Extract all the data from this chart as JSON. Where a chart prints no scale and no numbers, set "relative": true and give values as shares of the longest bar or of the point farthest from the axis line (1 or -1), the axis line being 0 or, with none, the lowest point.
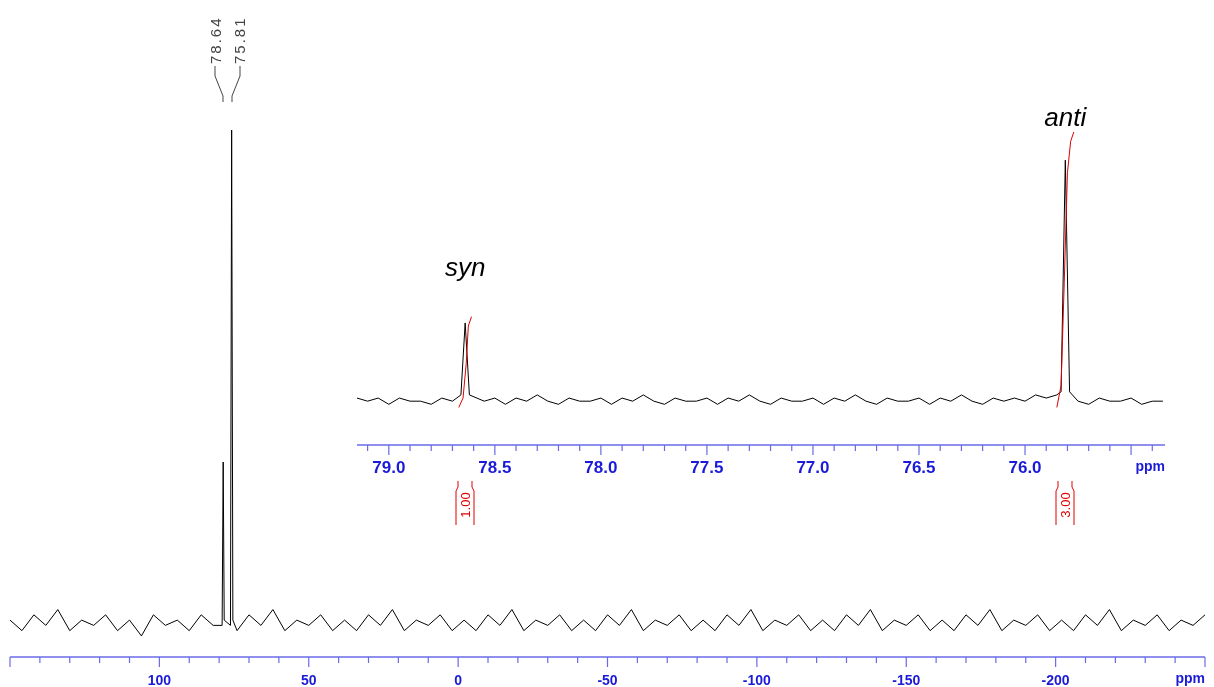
{
  "chart_data": [
    {
      "type": "line",
      "relative": true,
      "xlabel": "ppm",
      "xlim": [
        150,
        -250
      ],
      "xticks": [
        {
          "value": 150,
          "label": null
        },
        {
          "value": 140,
          "label": null
        },
        {
          "value": 130,
          "label": null
        },
        {
          "value": 120,
          "label": null
        },
        {
          "value": 110,
          "label": null
        },
        100,
        {
          "value": 90,
          "label": null
        },
        {
          "value": 80,
          "label": null
        },
        {
          "value": 70,
          "label": null
        },
        {
          "value": 60,
          "label": null
        },
        50,
        {
          "value": 40,
          "label": null
        },
        {
          "value": 30,
          "label": null
        },
        {
          "value": 20,
          "label": null
        },
        {
          "value": 10,
          "label": null
        },
        0,
        {
          "value": -10,
          "label": null
        },
        {
          "value": -20,
          "label": null
        },
        {
          "value": -30,
          "label": null
        },
        {
          "value": -40,
          "label": null
        },
        -50,
        {
          "value": -60,
          "label": null
        },
        {
          "value": -70,
          "label": null
        },
        {
          "value": -80,
          "label": null
        },
        {
          "value": -90,
          "label": null
        },
        -100,
        {
          "value": -110,
          "label": null
        },
        {
          "value": -120,
          "label": null
        },
        {
          "value": -130,
          "label": null
        },
        {
          "value": -140,
          "label": null
        },
        -150,
        {
          "value": -160,
          "label": null
        },
        {
          "value": -170,
          "label": null
        },
        {
          "value": -180,
          "label": null
        },
        {
          "value": -190,
          "label": null
        },
        -200,
        {
          "value": -210,
          "label": null
        },
        {
          "value": -220,
          "label": null
        },
        {
          "value": -230,
          "label": null
        },
        {
          "value": -240,
          "label": null
        },
        {
          "value": -250,
          "label": null
        }
      ],
      "annotations": [
        "78.64",
        "75.81"
      ],
      "series": [
        {
          "color": "#000000",
          "x": [
            150,
            146,
            142,
            138,
            134,
            130,
            126,
            122,
            118,
            114,
            110,
            106,
            102,
            98,
            94,
            90,
            86,
            82,
            79,
            78.64,
            78.3,
            76.2,
            75.81,
            75.4,
            74,
            70,
            66,
            62,
            58,
            54,
            50,
            46,
            42,
            38,
            34,
            30,
            26,
            22,
            18,
            14,
            10,
            6,
            2,
            -2,
            -6,
            -10,
            -14,
            -18,
            -22,
            -26,
            -30,
            -34,
            -38,
            -42,
            -46,
            -50,
            -54,
            -58,
            -62,
            -66,
            -70,
            -74,
            -78,
            -82,
            -86,
            -90,
            -94,
            -98,
            -102,
            -106,
            -110,
            -114,
            -118,
            -122,
            -126,
            -130,
            -134,
            -138,
            -142,
            -146,
            -150,
            -154,
            -158,
            -162,
            -166,
            -170,
            -174,
            -178,
            -182,
            -186,
            -190,
            -194,
            -198,
            -202,
            -206,
            -210,
            -214,
            -218,
            -222,
            -226,
            -230,
            -234,
            -238,
            -242,
            -246,
            -250
          ],
          "values": [
            0.07,
            0.05,
            0.08,
            0.06,
            0.09,
            0.05,
            0.07,
            0.06,
            0.08,
            0.05,
            0.07,
            0.04,
            0.08,
            0.06,
            0.07,
            0.05,
            0.08,
            0.06,
            0.06,
            0.37,
            0.07,
            0.06,
            1,
            0.07,
            0.05,
            0.08,
            0.06,
            0.09,
            0.05,
            0.07,
            0.06,
            0.08,
            0.05,
            0.07,
            0.05,
            0.08,
            0.06,
            0.09,
            0.05,
            0.07,
            0.06,
            0.08,
            0.05,
            0.07,
            0.05,
            0.08,
            0.06,
            0.09,
            0.05,
            0.07,
            0.06,
            0.08,
            0.05,
            0.07,
            0.05,
            0.08,
            0.06,
            0.09,
            0.05,
            0.07,
            0.06,
            0.08,
            0.05,
            0.07,
            0.05,
            0.08,
            0.06,
            0.09,
            0.05,
            0.07,
            0.06,
            0.08,
            0.05,
            0.07,
            0.05,
            0.08,
            0.06,
            0.09,
            0.05,
            0.07,
            0.06,
            0.08,
            0.05,
            0.07,
            0.05,
            0.08,
            0.06,
            0.09,
            0.05,
            0.07,
            0.06,
            0.08,
            0.05,
            0.07,
            0.05,
            0.08,
            0.06,
            0.09,
            0.05,
            0.07,
            0.06,
            0.08,
            0.05,
            0.07,
            0.06,
            0.08
          ]
        }
      ]
    },
    {
      "type": "line",
      "relative": true,
      "xlabel": "ppm",
      "xlim": [
        79.15,
        75.34
      ],
      "xticks": [
        {
          "value": 79.1,
          "label": null
        },
        {
          "value": 79,
          "label": "79.0"
        },
        {
          "value": 78.9,
          "label": null
        },
        {
          "value": 78.8,
          "label": null
        },
        {
          "value": 78.7,
          "label": null
        },
        {
          "value": 78.6,
          "label": null
        },
        78.5,
        {
          "value": 78.4,
          "label": null
        },
        {
          "value": 78.3,
          "label": null
        },
        {
          "value": 78.2,
          "label": null
        },
        {
          "value": 78.1,
          "label": null
        },
        {
          "value": 78,
          "label": "78.0"
        },
        {
          "value": 77.9,
          "label": null
        },
        {
          "value": 77.8,
          "label": null
        },
        {
          "value": 77.7,
          "label": null
        },
        {
          "value": 77.6,
          "label": null
        },
        77.5,
        {
          "value": 77.4,
          "label": null
        },
        {
          "value": 77.3,
          "label": null
        },
        {
          "value": 77.2,
          "label": null
        },
        {
          "value": 77.1,
          "label": null
        },
        {
          "value": 77,
          "label": "77.0"
        },
        {
          "value": 76.9,
          "label": null
        },
        {
          "value": 76.8,
          "label": null
        },
        {
          "value": 76.7,
          "label": null
        },
        {
          "value": 76.6,
          "label": null
        },
        76.5,
        {
          "value": 76.4,
          "label": null
        },
        {
          "value": 76.3,
          "label": null
        },
        {
          "value": 76.2,
          "label": null
        },
        {
          "value": 76.1,
          "label": null
        },
        {
          "value": 76,
          "label": "76.0"
        },
        {
          "value": 75.9,
          "label": null
        },
        {
          "value": 75.8,
          "label": null
        },
        {
          "value": 75.7,
          "label": null
        },
        {
          "value": 75.6,
          "label": null
        },
        {
          "value": 75.5,
          "label": null
        },
        {
          "value": 75.4,
          "label": null
        }
      ],
      "annotations": [
        "syn",
        "anti",
        "1.00",
        "3.00"
      ],
      "series": [
        {
          "color": "#000000",
          "x": [
            79.15,
            79.1,
            79.05,
            79,
            78.95,
            78.9,
            78.85,
            78.8,
            78.75,
            78.7,
            78.66,
            78.64,
            78.62,
            78.55,
            78.5,
            78.45,
            78.4,
            78.35,
            78.3,
            78.25,
            78.2,
            78.15,
            78.1,
            78.05,
            78,
            77.95,
            77.9,
            77.85,
            77.8,
            77.75,
            77.7,
            77.65,
            77.6,
            77.55,
            77.5,
            77.45,
            77.4,
            77.35,
            77.3,
            77.25,
            77.2,
            77.15,
            77.1,
            77.05,
            77,
            76.95,
            76.9,
            76.85,
            76.8,
            76.75,
            76.7,
            76.65,
            76.6,
            76.55,
            76.5,
            76.45,
            76.4,
            76.35,
            76.3,
            76.25,
            76.2,
            76.15,
            76.1,
            76.05,
            76,
            75.95,
            75.9,
            75.85,
            75.83,
            75.81,
            75.79,
            75.75,
            75.7,
            75.65,
            75.6,
            75.55,
            75.5,
            75.45,
            75.4,
            75.35
          ],
          "values": [
            0.15,
            0.14,
            0.15,
            0.13,
            0.15,
            0.14,
            0.14,
            0.13,
            0.15,
            0.14,
            0.16,
            0.39,
            0.16,
            0.14,
            0.15,
            0.13,
            0.15,
            0.14,
            0.16,
            0.14,
            0.13,
            0.15,
            0.14,
            0.14,
            0.15,
            0.13,
            0.15,
            0.14,
            0.16,
            0.14,
            0.13,
            0.15,
            0.14,
            0.14,
            0.15,
            0.13,
            0.15,
            0.14,
            0.16,
            0.14,
            0.13,
            0.15,
            0.14,
            0.14,
            0.15,
            0.13,
            0.15,
            0.14,
            0.16,
            0.14,
            0.13,
            0.15,
            0.14,
            0.14,
            0.15,
            0.13,
            0.15,
            0.14,
            0.16,
            0.14,
            0.13,
            0.15,
            0.14,
            0.15,
            0.14,
            0.16,
            0.15,
            0.16,
            0.17,
            0.91,
            0.17,
            0.14,
            0.13,
            0.15,
            0.14,
            0.14,
            0.15,
            0.13,
            0.14,
            0.14
          ]
        },
        {
          "color": "#e00000",
          "x": [
            78.67,
            78.65,
            78.635,
            78.625,
            78.61
          ],
          "values": [
            0.12,
            0.15,
            0.26,
            0.38,
            0.41
          ]
        },
        {
          "color": "#e00000",
          "x": [
            75.85,
            75.83,
            75.815,
            75.8,
            75.785,
            75.77
          ],
          "values": [
            0.12,
            0.19,
            0.52,
            0.87,
            0.97,
            1
          ]
        }
      ]
    }
  ]
}
